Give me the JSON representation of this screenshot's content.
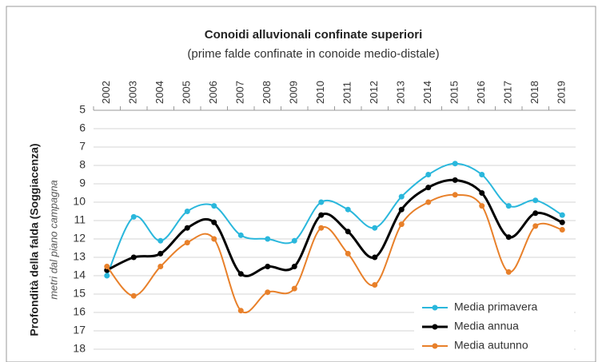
{
  "chart_data": {
    "type": "line",
    "title": "Conoidi alluvionali confinate superiori",
    "subtitle": "(prime falde confinate in conoide medio-distale)",
    "y_label": "Profondità della falda (Soggiacenza)",
    "y_sublabel": "metri dal piano campagna",
    "categories": [
      "2002",
      "2003",
      "2004",
      "2005",
      "2006",
      "2007",
      "2008",
      "2009",
      "2010",
      "2011",
      "2012",
      "2013",
      "2014",
      "2015",
      "2016",
      "2017",
      "2018",
      "2019"
    ],
    "series": [
      {
        "name": "Media primavera",
        "color": "#2ab7dc",
        "values": [
          14.0,
          10.8,
          12.1,
          10.5,
          10.2,
          11.8,
          12.0,
          12.1,
          10.0,
          10.4,
          11.4,
          9.7,
          8.5,
          7.9,
          8.5,
          10.2,
          9.9,
          10.7
        ]
      },
      {
        "name": "Media annua",
        "color": "#000000",
        "values": [
          13.7,
          13.0,
          12.8,
          11.4,
          11.1,
          13.9,
          13.5,
          13.5,
          10.7,
          11.6,
          13.0,
          10.4,
          9.2,
          8.8,
          9.5,
          11.9,
          10.6,
          11.1
        ]
      },
      {
        "name": "Media autunno",
        "color": "#e8802a",
        "values": [
          13.5,
          15.1,
          13.5,
          12.2,
          12.0,
          15.9,
          14.9,
          14.7,
          11.4,
          12.8,
          14.5,
          11.2,
          10.0,
          9.6,
          10.2,
          13.8,
          11.3,
          11.5
        ]
      }
    ],
    "ylim": [
      5,
      18
    ],
    "yticks": [
      5,
      6,
      7,
      8,
      9,
      10,
      11,
      12,
      13,
      14,
      15,
      16,
      17,
      18
    ],
    "y_inverted": true,
    "grid": true,
    "legend": "lower right"
  }
}
